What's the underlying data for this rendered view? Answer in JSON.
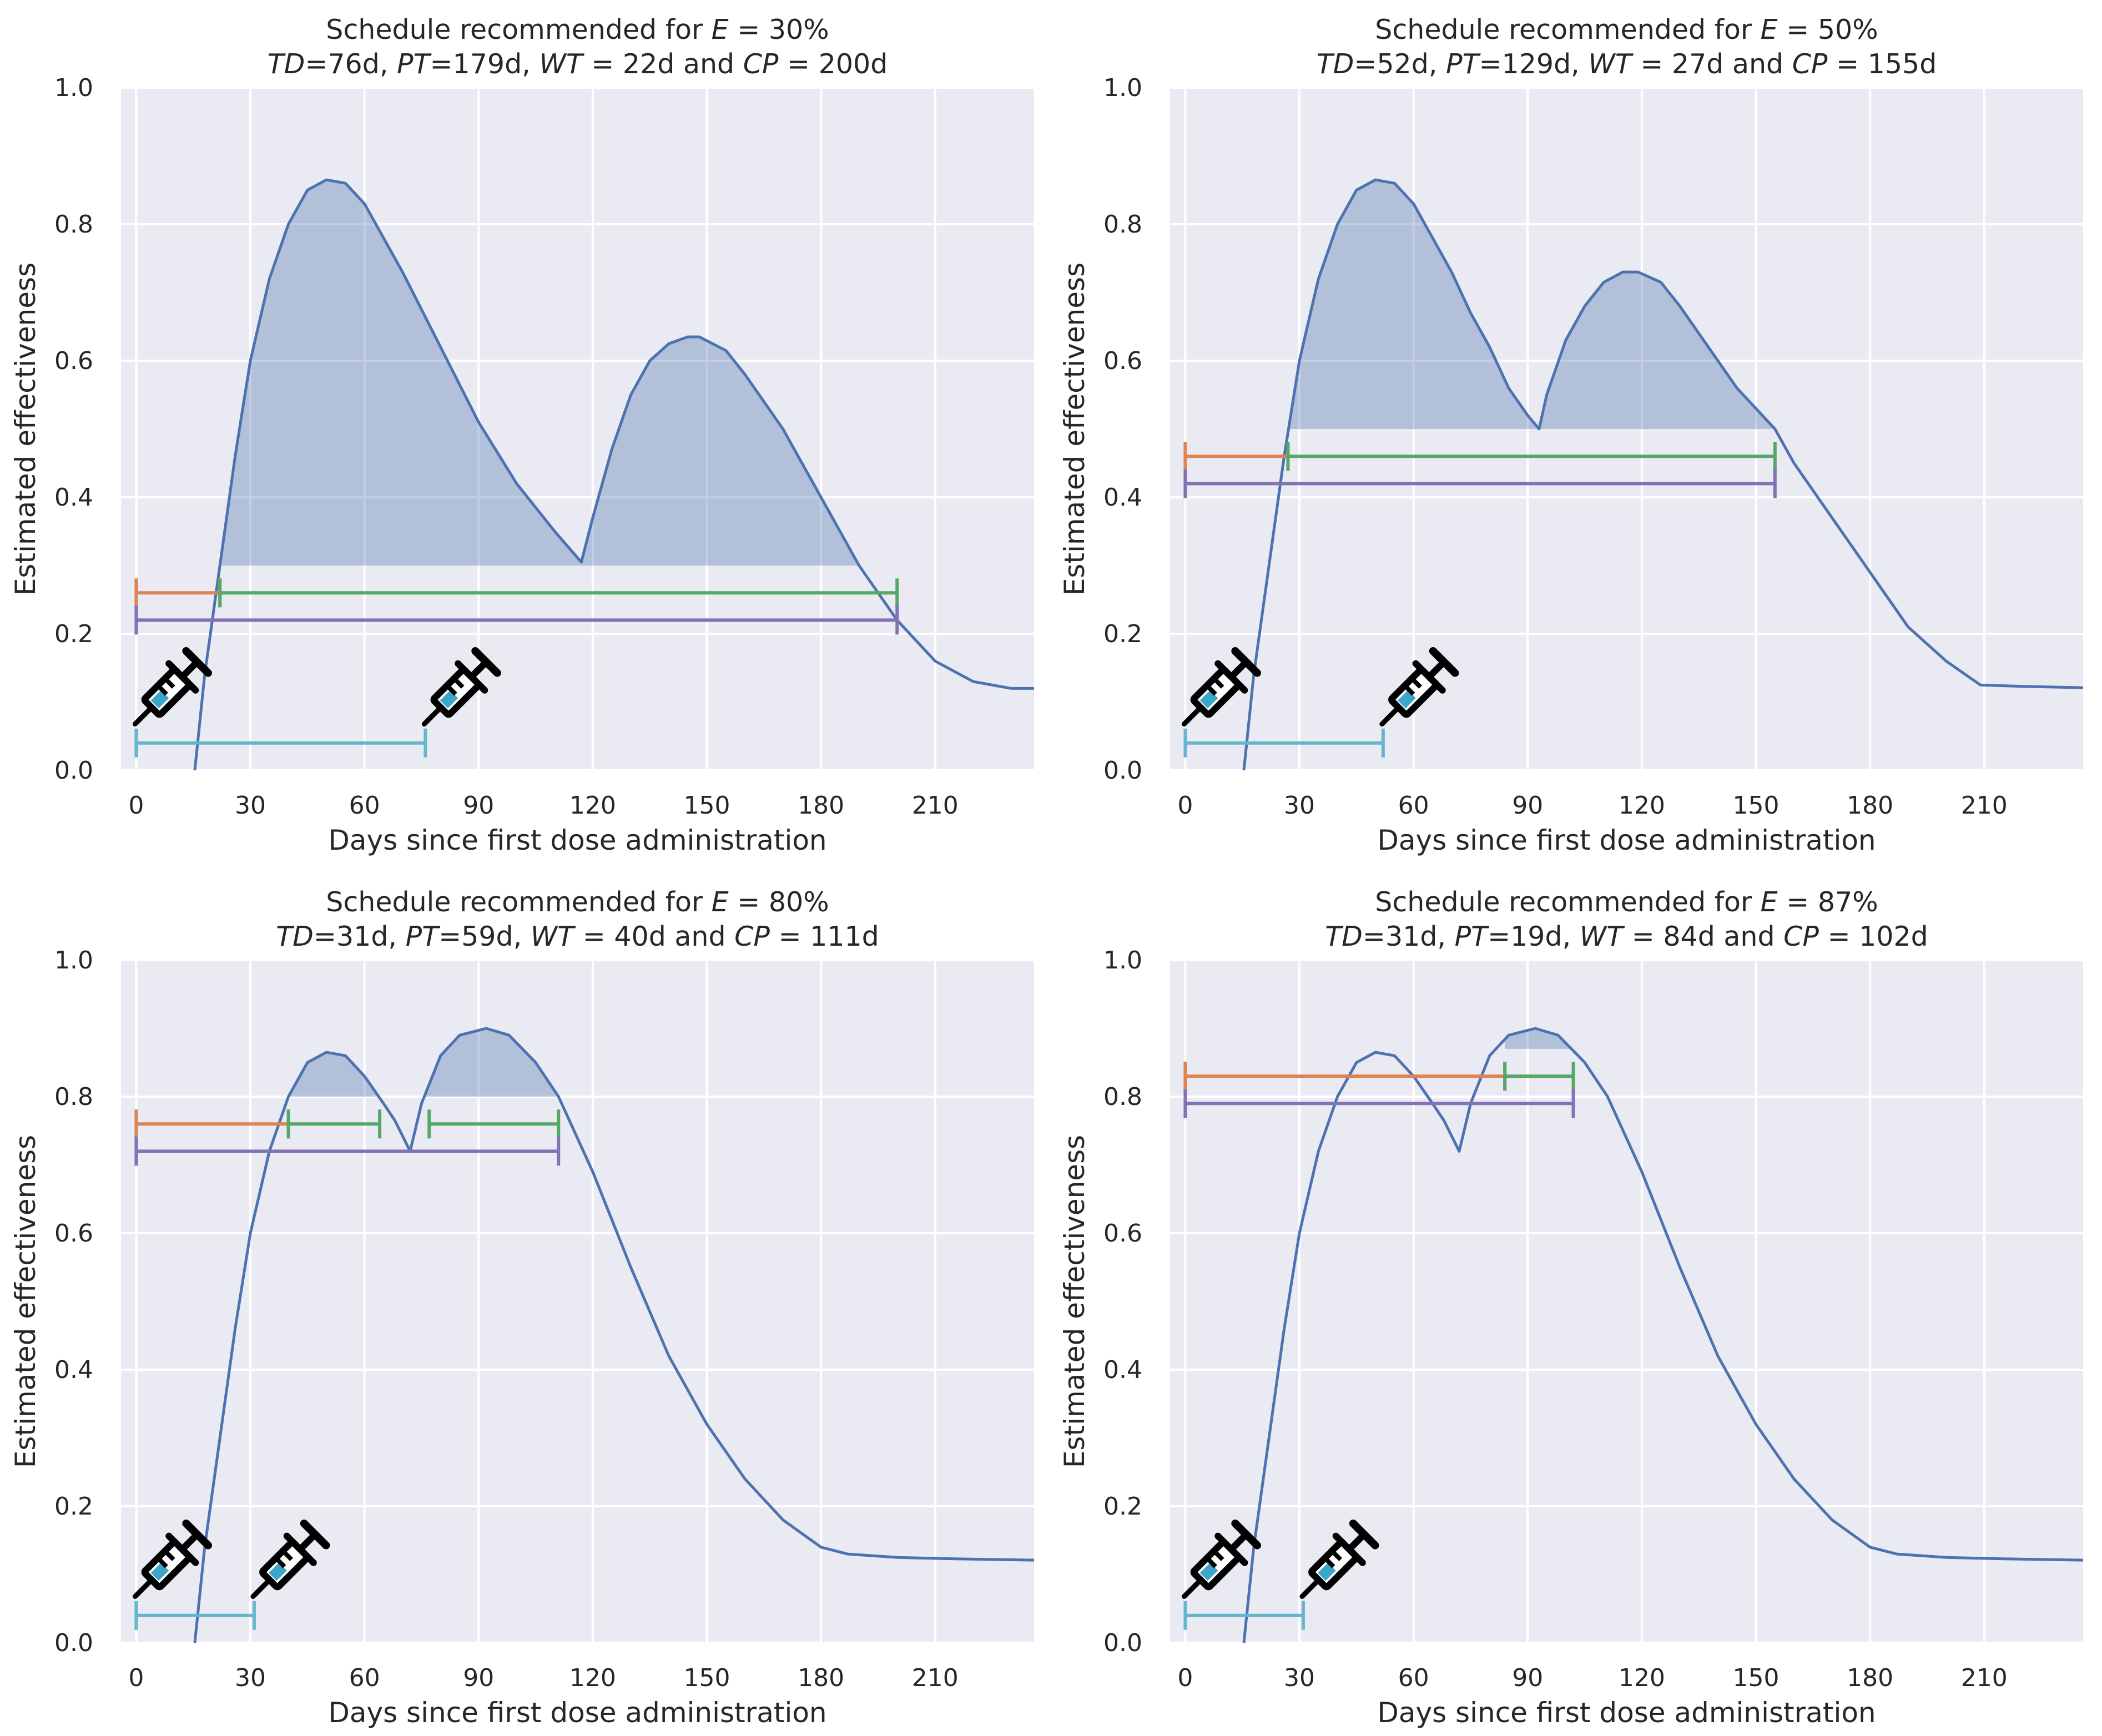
{
  "chart_data": [
    {
      "type": "line",
      "title_line1": [
        "Schedule recommended for ",
        "E",
        " = 30%"
      ],
      "title_line2": [
        "TD",
        "=76d, ",
        "PT",
        "=179d, ",
        "WT",
        " = 22d and ",
        "CP",
        " = 200d"
      ],
      "xlabel": "Days since first dose administration",
      "ylabel": "Estimated effectiveness",
      "xlim": [
        -4,
        236
      ],
      "ylim": [
        0,
        1
      ],
      "xticks": [
        0,
        30,
        60,
        90,
        120,
        150,
        180,
        210
      ],
      "yticks": [
        0.0,
        0.2,
        0.4,
        0.6,
        0.8,
        1.0
      ],
      "threshold": 0.3,
      "shaded_x_range": [
        22,
        200
      ],
      "curve": {
        "name": "Estimated effectiveness",
        "x": [
          15.4,
          18,
          22,
          26,
          30,
          35,
          40,
          45,
          50,
          55,
          60,
          70,
          80,
          90,
          100,
          110,
          117,
          120,
          125,
          130,
          135,
          140,
          145,
          148,
          155,
          160,
          170,
          180,
          190,
          200,
          210,
          220,
          230,
          236
        ],
        "y": [
          0.0,
          0.14,
          0.3,
          0.46,
          0.6,
          0.72,
          0.8,
          0.85,
          0.865,
          0.86,
          0.83,
          0.73,
          0.62,
          0.51,
          0.42,
          0.35,
          0.305,
          0.37,
          0.47,
          0.55,
          0.6,
          0.625,
          0.635,
          0.635,
          0.615,
          0.58,
          0.5,
          0.4,
          0.3,
          0.22,
          0.16,
          0.13,
          0.12,
          0.12
        ]
      },
      "intervals": [
        {
          "name": "WT",
          "start": 0,
          "end": 22,
          "y": 0.26,
          "color": "#dd8452"
        },
        {
          "name": "PT",
          "start": 22,
          "end": 200,
          "y": 0.26,
          "color": "#55a868"
        },
        {
          "name": "CP",
          "start": 0,
          "end": 200,
          "y": 0.22,
          "color": "#8172b3"
        },
        {
          "name": "TD",
          "start": 0,
          "end": 76,
          "y": 0.04,
          "color": "#64b5cd"
        }
      ],
      "doses": [
        0,
        76
      ]
    },
    {
      "type": "line",
      "title_line1": [
        "Schedule recommended for ",
        "E",
        " = 50%"
      ],
      "title_line2": [
        "TD",
        "=52d, ",
        "PT",
        "=129d, ",
        "WT",
        " = 27d and ",
        "CP",
        " = 155d"
      ],
      "xlabel": "Days since first dose administration",
      "ylabel": "Estimated effectiveness",
      "xlim": [
        -4,
        236
      ],
      "ylim": [
        0,
        1
      ],
      "xticks": [
        0,
        30,
        60,
        90,
        120,
        150,
        180,
        210
      ],
      "yticks": [
        0.0,
        0.2,
        0.4,
        0.6,
        0.8,
        1.0
      ],
      "threshold": 0.5,
      "shaded_x_range": [
        27,
        155
      ],
      "curve": {
        "name": "Estimated effectiveness",
        "x": [
          15.4,
          18,
          22,
          26,
          30,
          35,
          40,
          45,
          50,
          55,
          60,
          65,
          70,
          75,
          80,
          85,
          90,
          93,
          95,
          100,
          105,
          110,
          115,
          119,
          125,
          130,
          135,
          140,
          145,
          150,
          155,
          160,
          170,
          180,
          190,
          200,
          209,
          220,
          236
        ],
        "y": [
          0.0,
          0.14,
          0.3,
          0.46,
          0.6,
          0.72,
          0.8,
          0.85,
          0.865,
          0.86,
          0.83,
          0.78,
          0.73,
          0.67,
          0.62,
          0.56,
          0.52,
          0.5,
          0.55,
          0.63,
          0.68,
          0.715,
          0.73,
          0.73,
          0.715,
          0.68,
          0.64,
          0.6,
          0.56,
          0.53,
          0.5,
          0.45,
          0.37,
          0.29,
          0.21,
          0.16,
          0.125,
          0.123,
          0.121
        ]
      },
      "intervals": [
        {
          "name": "WT",
          "start": 0,
          "end": 27,
          "y": 0.46,
          "color": "#dd8452"
        },
        {
          "name": "PT",
          "start": 27,
          "end": 155,
          "y": 0.46,
          "color": "#55a868"
        },
        {
          "name": "CP",
          "start": 0,
          "end": 155,
          "y": 0.42,
          "color": "#8172b3"
        },
        {
          "name": "TD",
          "start": 0,
          "end": 52,
          "y": 0.04,
          "color": "#64b5cd"
        }
      ],
      "doses": [
        0,
        52
      ]
    },
    {
      "type": "line",
      "title_line1": [
        "Schedule recommended for ",
        "E",
        " = 80%"
      ],
      "title_line2": [
        "TD",
        "=31d, ",
        "PT",
        "=59d, ",
        "WT",
        " = 40d and ",
        "CP",
        " = 111d"
      ],
      "xlabel": "Days since first dose administration",
      "ylabel": "Estimated effectiveness",
      "xlim": [
        -4,
        236
      ],
      "ylim": [
        0,
        1
      ],
      "xticks": [
        0,
        30,
        60,
        90,
        120,
        150,
        180,
        210
      ],
      "yticks": [
        0.0,
        0.2,
        0.4,
        0.6,
        0.8,
        1.0
      ],
      "threshold": 0.8,
      "shaded_x_range": [
        40,
        111
      ],
      "curve": {
        "name": "Estimated effectiveness",
        "x": [
          15.4,
          18,
          22,
          26,
          30,
          35,
          40,
          45,
          50,
          55,
          60,
          65,
          68,
          72,
          75,
          80,
          85,
          92,
          98,
          105,
          111,
          120,
          130,
          140,
          150,
          160,
          170,
          180,
          187,
          200,
          215,
          236
        ],
        "y": [
          0.0,
          0.14,
          0.3,
          0.46,
          0.6,
          0.72,
          0.8,
          0.85,
          0.865,
          0.86,
          0.83,
          0.79,
          0.765,
          0.72,
          0.79,
          0.86,
          0.89,
          0.9,
          0.89,
          0.85,
          0.8,
          0.69,
          0.55,
          0.42,
          0.32,
          0.24,
          0.18,
          0.14,
          0.13,
          0.125,
          0.123,
          0.121
        ]
      },
      "intervals": [
        {
          "name": "WT",
          "start": 0,
          "end": 40,
          "y": 0.76,
          "color": "#dd8452"
        },
        {
          "name": "PT",
          "start": 40,
          "end": 64,
          "y": 0.76,
          "color": "#55a868"
        },
        {
          "name": "PT",
          "start": 77,
          "end": 111,
          "y": 0.76,
          "color": "#55a868"
        },
        {
          "name": "CP",
          "start": 0,
          "end": 111,
          "y": 0.72,
          "color": "#8172b3"
        },
        {
          "name": "TD",
          "start": 0,
          "end": 31,
          "y": 0.04,
          "color": "#64b5cd"
        }
      ],
      "doses": [
        0,
        31
      ]
    },
    {
      "type": "line",
      "title_line1": [
        "Schedule recommended for ",
        "E",
        " = 87%"
      ],
      "title_line2": [
        "TD",
        "=31d, ",
        "PT",
        "=19d, ",
        "WT",
        " = 84d and ",
        "CP",
        " = 102d"
      ],
      "xlabel": "Days since first dose administration",
      "ylabel": "Estimated effectiveness",
      "xlim": [
        -4,
        236
      ],
      "ylim": [
        0,
        1
      ],
      "xticks": [
        0,
        30,
        60,
        90,
        120,
        150,
        180,
        210
      ],
      "yticks": [
        0.0,
        0.2,
        0.4,
        0.6,
        0.8,
        1.0
      ],
      "threshold": 0.87,
      "shaded_x_range": [
        84,
        102
      ],
      "curve": {
        "name": "Estimated effectiveness",
        "x": [
          15.4,
          18,
          22,
          26,
          30,
          35,
          40,
          45,
          50,
          55,
          60,
          65,
          68,
          72,
          75,
          80,
          85,
          92,
          98,
          105,
          111,
          120,
          130,
          140,
          150,
          160,
          170,
          180,
          187,
          200,
          215,
          236
        ],
        "y": [
          0.0,
          0.14,
          0.3,
          0.46,
          0.6,
          0.72,
          0.8,
          0.85,
          0.865,
          0.86,
          0.83,
          0.79,
          0.765,
          0.72,
          0.79,
          0.86,
          0.89,
          0.9,
          0.89,
          0.85,
          0.8,
          0.69,
          0.55,
          0.42,
          0.32,
          0.24,
          0.18,
          0.14,
          0.13,
          0.125,
          0.123,
          0.121
        ]
      },
      "intervals": [
        {
          "name": "WT",
          "start": 0,
          "end": 84,
          "y": 0.83,
          "color": "#dd8452"
        },
        {
          "name": "PT",
          "start": 84,
          "end": 102,
          "y": 0.83,
          "color": "#55a868"
        },
        {
          "name": "CP",
          "start": 0,
          "end": 102,
          "y": 0.79,
          "color": "#8172b3"
        },
        {
          "name": "TD",
          "start": 0,
          "end": 31,
          "y": 0.04,
          "color": "#64b5cd"
        }
      ],
      "doses": [
        0,
        31
      ]
    }
  ],
  "style": {
    "curve_color": "#4c72b0",
    "fill_color": "#4c72b0",
    "syringe_color": "#000000",
    "syringe_liquid": "#3aa6c8"
  }
}
